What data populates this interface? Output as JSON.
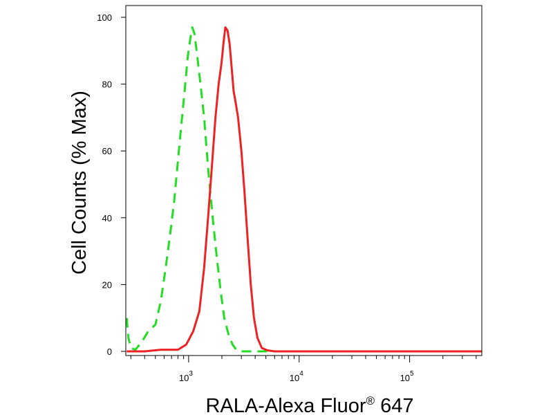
{
  "chart_data": {
    "type": "area",
    "title": "",
    "xlabel": "RALA-Alexa Fluor",
    "xlabel_superscript": "®",
    "xlabel_suffix": "647",
    "ylabel": "Cell Counts (% Max)",
    "x_scale": "log",
    "xlim": [
      270,
      450000
    ],
    "ylim": [
      0,
      100
    ],
    "x_ticks": [
      {
        "value": 1000,
        "base": "10",
        "exp": "3"
      },
      {
        "value": 10000,
        "base": "10",
        "exp": "4"
      },
      {
        "value": 100000,
        "base": "10",
        "exp": "5"
      }
    ],
    "y_ticks": [
      {
        "value": 0,
        "label": "0"
      },
      {
        "value": 20,
        "label": "20"
      },
      {
        "value": 40,
        "label": "40"
      },
      {
        "value": 60,
        "label": "60"
      },
      {
        "value": 80,
        "label": "80"
      },
      {
        "value": 100,
        "label": "100"
      }
    ],
    "grid": false,
    "legend": "none",
    "series": [
      {
        "color": "#22dd22",
        "style": "dashed",
        "x": [
          275,
          285,
          300,
          330,
          380,
          430,
          500,
          560,
          620,
          680,
          740,
          800,
          860,
          920,
          980,
          1040,
          1080,
          1130,
          1200,
          1280,
          1380,
          1500,
          1650,
          1800,
          1950,
          2100,
          2300,
          2500,
          2700,
          2900,
          3200,
          5000,
          100000,
          450000
        ],
        "y": [
          10,
          4,
          1,
          0.5,
          3,
          6,
          8,
          15,
          25,
          35,
          45,
          57,
          68,
          78,
          88,
          94,
          97,
          95,
          88,
          80,
          70,
          55,
          40,
          28,
          18,
          10,
          5,
          2,
          0.5,
          0,
          0,
          0,
          0,
          0
        ]
      },
      {
        "color": "#ee2222",
        "style": "solid",
        "x": [
          275,
          400,
          560,
          800,
          950,
          1100,
          1250,
          1380,
          1500,
          1620,
          1750,
          1870,
          1980,
          2080,
          2150,
          2250,
          2350,
          2450,
          2550,
          2650,
          2800,
          3000,
          3200,
          3400,
          3650,
          3900,
          4200,
          4600,
          5200,
          6000,
          10000,
          100000,
          450000
        ],
        "y": [
          0,
          0,
          0.5,
          0.5,
          2,
          6,
          12,
          25,
          40,
          55,
          70,
          80,
          86,
          93,
          97,
          96,
          92,
          85,
          78,
          75,
          70,
          60,
          48,
          35,
          20,
          10,
          4,
          1,
          0.3,
          0,
          0,
          0,
          0
        ]
      }
    ]
  }
}
